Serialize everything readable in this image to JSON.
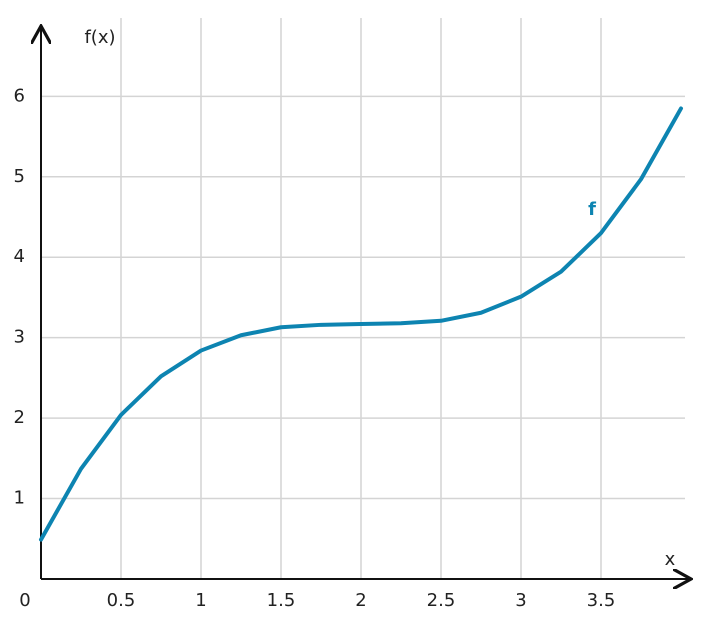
{
  "chart_data": {
    "type": "line",
    "x_label": "x",
    "y_label": "f(x)",
    "x": [
      0,
      0.25,
      0.5,
      0.75,
      1,
      1.25,
      1.5,
      1.75,
      2,
      2.25,
      2.5,
      2.75,
      3,
      3.25,
      3.5,
      3.75,
      4
    ],
    "series": [
      {
        "name": "f",
        "color": "#0d84b1",
        "values": [
          0.49,
          1.37,
          2.04,
          2.52,
          2.84,
          3.03,
          3.13,
          3.16,
          3.17,
          3.18,
          3.21,
          3.31,
          3.51,
          3.82,
          4.3,
          4.97,
          5.85
        ]
      }
    ],
    "xlim": [
      0,
      4.05
    ],
    "ylim": [
      0,
      6.85
    ],
    "xticks": [
      0,
      0.5,
      1,
      1.5,
      2,
      2.5,
      3,
      3.5
    ],
    "yticks": [
      1,
      2,
      3,
      4,
      5,
      6
    ],
    "grid": true
  }
}
